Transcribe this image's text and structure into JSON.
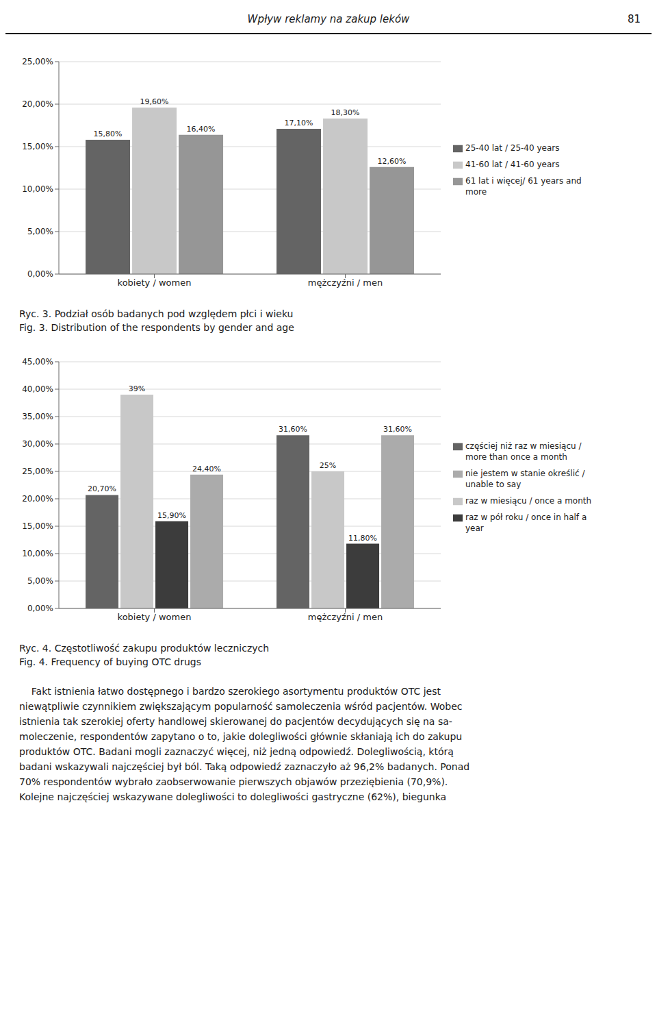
{
  "page_header": "Wpływ reklamy na zakup leków",
  "page_number": "81",
  "chart_data": [
    {
      "type": "bar",
      "title": "Ryc. 3. Podział osób badanych pod względem płci i wieku",
      "subtitle": "Fig. 3. Distribution of the respondents by gender and age",
      "categories": [
        "kobiety / women",
        "mężczyźni / men"
      ],
      "series": [
        {
          "name": "25-40 lat / 25-40 years",
          "color": "#646464",
          "values": [
            15.8,
            17.1
          ],
          "value_labels": [
            "15,80%",
            "17,10%"
          ]
        },
        {
          "name": "41-60 lat / 41-60 years",
          "color": "#c8c8c8",
          "values": [
            19.6,
            18.3
          ],
          "value_labels": [
            "19,60%",
            "18,30%"
          ]
        },
        {
          "name": "61 lat i więcej/ 61 years and\nmore",
          "color": "#969696",
          "values": [
            16.4,
            12.6
          ],
          "value_labels": [
            "16,40%",
            "12,60%"
          ]
        }
      ],
      "ylim": [
        0,
        25
      ],
      "yticks": [
        {
          "value": 0,
          "label": "0,00%"
        },
        {
          "value": 5,
          "label": "5,00%"
        },
        {
          "value": 10,
          "label": "10,00%"
        },
        {
          "value": 15,
          "label": "15,00%"
        },
        {
          "value": 20,
          "label": "20,00%"
        },
        {
          "value": 25,
          "label": "25,00%"
        }
      ],
      "grid": true,
      "legend": "right",
      "data_labels": true
    },
    {
      "type": "bar",
      "title": "Ryc. 4. Częstotliwość zakupu produktów leczniczych",
      "subtitle": "Fig. 4. Frequency of buying OTC drugs",
      "categories": [
        "kobiety / women",
        "mężczyźni / men"
      ],
      "series": [
        {
          "name": "częściej niż raz w miesiącu /\nmore than once a month",
          "color": "#646464",
          "values": [
            20.7,
            31.6
          ],
          "value_labels": [
            "20,70%",
            "31,60%"
          ]
        },
        {
          "name": "raz w miesiącu / once a month",
          "color": "#c8c8c8",
          "values": [
            39.0,
            25.0
          ],
          "value_labels": [
            "39%",
            "25%"
          ]
        },
        {
          "name": "raz w pół roku / once in half a\nyear",
          "color": "#3c3c3c",
          "values": [
            15.9,
            11.8
          ],
          "value_labels": [
            "15,90%",
            "11,80%"
          ]
        },
        {
          "name": "nie jestem w stanie określić /\nunable to say",
          "color": "#ababab",
          "values": [
            24.4,
            31.6
          ],
          "value_labels": [
            "24,40%",
            "31,60%"
          ]
        }
      ],
      "ylim": [
        0,
        45
      ],
      "yticks": [
        {
          "value": 0,
          "label": "0,00%"
        },
        {
          "value": 5,
          "label": "5,00%"
        },
        {
          "value": 10,
          "label": "10,00%"
        },
        {
          "value": 15,
          "label": "15,00%"
        },
        {
          "value": 20,
          "label": "20,00%"
        },
        {
          "value": 25,
          "label": "25,00%"
        },
        {
          "value": 30,
          "label": "30,00%"
        },
        {
          "value": 35,
          "label": "35,00%"
        },
        {
          "value": 40,
          "label": "40,00%"
        },
        {
          "value": 45,
          "label": "45,00%"
        }
      ],
      "grid": true,
      "legend": "right",
      "data_labels": true
    }
  ],
  "body_text": [
    "    Fakt istnienia łatwo dostępnego i bardzo szerokiego asortymentu produktów OTC jest",
    "niewątpliwie czynnikiem zwiększającym popularność samoleczenia wśród pacjentów. Wobec",
    "istnienia tak szerokiej oferty handlowej skierowanej do pacjentów decydujących się na sa-",
    "moleczenie, respondentów zapytano o to, jakie dolegliwości głównie skłaniają ich do zakupu",
    "produktów OTC. Badani mogli zaznaczyć więcej, niż jedną odpowiedź. Dolegliwością, którą",
    "badani wskazywali najczęściej był ból. Taką odpowiedź zaznaczyło aż 96,2% badanych. Ponad",
    "70% respondentów wybrało zaobserwowanie pierwszych objawów przeziębienia (70,9%).",
    "Kolejne najczęściej wskazywane dolegliwości to dolegliwości gastryczne (62%), biegunka"
  ]
}
